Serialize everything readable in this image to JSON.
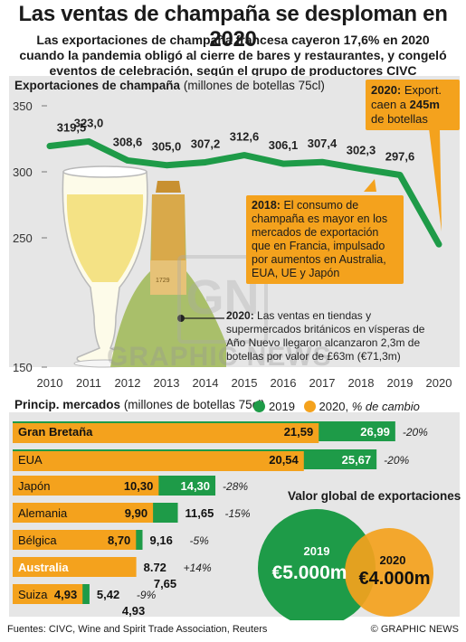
{
  "header": {
    "title": "Las ventas de champaña se desploman en 2020",
    "subtitle": "Las exportaciones de champaña francesa cayeron 17,6% en 2020 cuando la pandemia obligó al cierre de bares y restaurantes, y congeló eventos de celebración, según el grupo de productores CIVC"
  },
  "line_panel": {
    "title": "Exportaciones de champaña",
    "unit": "(millones de botellas 75cl)",
    "callout_2020_bold": "2020:",
    "callout_2020_a": " Export.",
    "callout_2020_b": "caen a ",
    "callout_2020_value": "245m",
    "callout_2020_c": "de botellas",
    "callout_2018_bold": "2018:",
    "callout_2018_text": " El consumo de champaña es mayor en los mercados de exportación que en Francia, impulsado por aumentos en Australia, EUA, UE y Japón",
    "note_2020_bold": "2020:",
    "note_2020_text": " Las ventas en tiendas y supermercados británicos en vísperas de Año Nuevo llegaron alcanzaron 2,3m de botellas por valor de £63m (€71,3m)"
  },
  "bars_panel": {
    "title": "Princip. mercados",
    "unit": "(millones de botellas 75cl)",
    "legend_2019": "2019",
    "legend_2020": "2020,",
    "legend_change": "% de cambio"
  },
  "global_value": {
    "title": "Valor global de exportaciones",
    "year_2019": "2019",
    "value_2019": "€5.000m",
    "year_2020": "2020",
    "value_2020": "€4.000m"
  },
  "watermark": "GRAPHIC NEWS",
  "watermark_logo": "GN",
  "footer": {
    "sources": "Fuentes: CIVC, Wine and Spirit Trade Association, Reuters",
    "credit": "© GRAPHIC NEWS"
  },
  "colors": {
    "green": "#1e9b48",
    "orange": "#f4a21d",
    "panel": "#e6e6e6"
  },
  "chart_data": [
    {
      "type": "line",
      "x": [
        2010,
        2011,
        2012,
        2013,
        2014,
        2015,
        2016,
        2017,
        2018,
        2019,
        2020
      ],
      "y": [
        319.5,
        323.0,
        308.6,
        305.0,
        307.2,
        312.6,
        306.1,
        307.4,
        302.3,
        297.6,
        245
      ],
      "point_labels": [
        "319,5",
        "323,0",
        "308,6",
        "305,0",
        "307,2",
        "312,6",
        "306,1",
        "307,4",
        "302,3",
        "297,6",
        ""
      ],
      "x_ticks": [
        "2010",
        "2011",
        "2012",
        "2013",
        "2014",
        "2015",
        "2016",
        "2017",
        "2018",
        "2019",
        "2020"
      ],
      "y_ticks": [
        "150",
        "250",
        "300",
        "350"
      ],
      "ylim": [
        150,
        350
      ],
      "color": "#1e9b48"
    },
    {
      "type": "bar",
      "orientation": "horizontal",
      "categories": [
        "Gran Bretaña",
        "EUA",
        "Japón",
        "Alemania",
        "Bélgica",
        "Australia",
        "Suiza"
      ],
      "series": [
        {
          "name": "2019",
          "values": [
            26.99,
            25.67,
            14.3,
            11.65,
            9.16,
            7.65,
            5.42
          ],
          "labels": [
            "26,99",
            "25,67",
            "14,30",
            "11,65",
            "9,16",
            "7,65",
            "5,42"
          ],
          "color": "#1e9b48"
        },
        {
          "name": "2020",
          "values": [
            21.59,
            20.54,
            10.3,
            9.9,
            8.7,
            8.72,
            4.93
          ],
          "labels": [
            "21,59",
            "20,54",
            "10,30",
            "9,90",
            "8,70",
            "8.72",
            "4,93"
          ],
          "color": "#f4a21d"
        }
      ],
      "change": [
        "-20%",
        "-20%",
        "-28%",
        "-15%",
        "-5%",
        "+14%",
        "-9%"
      ],
      "xlim": [
        0,
        27
      ]
    }
  ]
}
